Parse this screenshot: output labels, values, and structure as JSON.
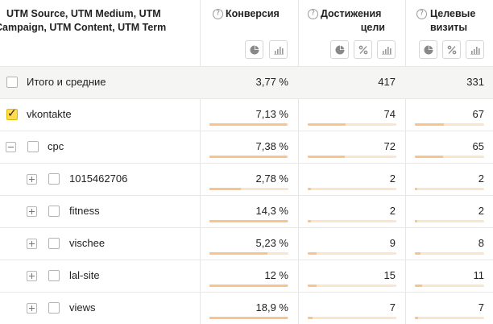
{
  "header": {
    "dimension_title_line1": "UTM Source, UTM Medium, UTM",
    "dimension_title_line2": "Campaign, UTM Content, UTM Term",
    "help_glyph": "?",
    "metrics": [
      {
        "title_line1": "Конверсия",
        "title_line2": "",
        "icons": [
          "pie-chart-icon",
          "bar-chart-icon"
        ]
      },
      {
        "title_line1": "Достижения",
        "title_line2": "цели",
        "icons": [
          "pie-chart-icon",
          "percent-icon",
          "bar-chart-icon"
        ]
      },
      {
        "title_line1": "Целевые",
        "title_line2": "визиты",
        "icons": [
          "pie-chart-icon",
          "percent-icon",
          "bar-chart-icon"
        ]
      }
    ]
  },
  "rows": [
    {
      "label": "Итого и средние",
      "level": 0,
      "expander": "none",
      "checked": false,
      "total": true,
      "values": [
        "3,77 %",
        "417",
        "331"
      ],
      "bars": [
        null,
        null,
        null
      ]
    },
    {
      "label": "vkontakte",
      "level": 0,
      "expander": "none",
      "checked": true,
      "total": false,
      "values": [
        "7,13 %",
        "74",
        "67"
      ],
      "bars": [
        0.98,
        0.43,
        0.42
      ]
    },
    {
      "label": "cpc",
      "level": 1,
      "expander": "minus",
      "checked": false,
      "total": false,
      "values": [
        "7,38 %",
        "72",
        "65"
      ],
      "bars": [
        0.98,
        0.42,
        0.41
      ]
    },
    {
      "label": "1015462706",
      "level": 2,
      "expander": "plus",
      "checked": false,
      "total": false,
      "values": [
        "2,78 %",
        "2",
        "2"
      ],
      "bars": [
        0.4,
        0.04,
        0.04
      ]
    },
    {
      "label": "fitness",
      "level": 2,
      "expander": "plus",
      "checked": false,
      "total": false,
      "values": [
        "14,3 %",
        "2",
        "2"
      ],
      "bars": [
        0.99,
        0.04,
        0.04
      ]
    },
    {
      "label": "vischee",
      "level": 2,
      "expander": "plus",
      "checked": false,
      "total": false,
      "values": [
        "5,23 %",
        "9",
        "8"
      ],
      "bars": [
        0.73,
        0.1,
        0.08
      ]
    },
    {
      "label": "lal-site",
      "level": 2,
      "expander": "plus",
      "checked": false,
      "total": false,
      "values": [
        "12 %",
        "15",
        "11"
      ],
      "bars": [
        0.99,
        0.1,
        0.1
      ]
    },
    {
      "label": "views",
      "level": 2,
      "expander": "plus",
      "checked": false,
      "total": false,
      "values": [
        "18,9 %",
        "7",
        "7"
      ],
      "bars": [
        0.99,
        0.05,
        0.05
      ]
    }
  ],
  "colors": {
    "bar_fill": "#f7c48a",
    "bar_track": "#fbe6cc",
    "checkbox_checked": "#ffdb4d",
    "total_row_bg": "#f5f5f4"
  }
}
